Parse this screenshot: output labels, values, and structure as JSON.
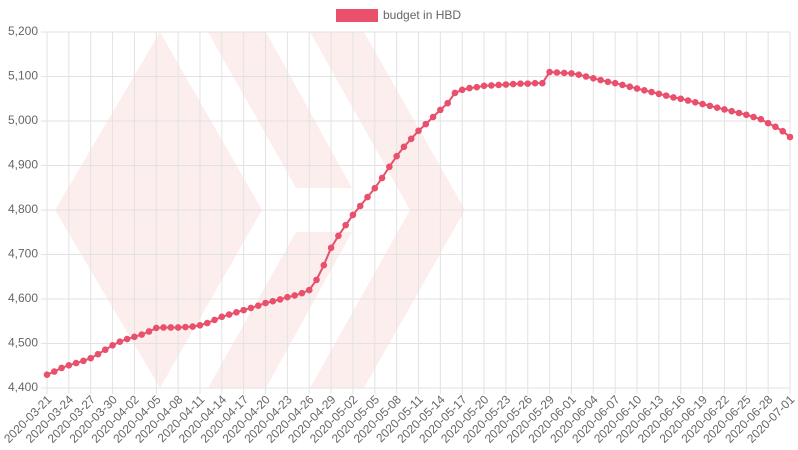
{
  "chart_data": {
    "type": "line",
    "series": [
      {
        "name": "budget in HBD",
        "color": "#e8506c",
        "values": [
          4430,
          4437,
          4445,
          4451,
          4456,
          4461,
          4467,
          4476,
          4486,
          4496,
          4504,
          4510,
          4515,
          4520,
          4527,
          4535,
          4536,
          4536,
          4536,
          4537,
          4538,
          4541,
          4546,
          4553,
          4560,
          4565,
          4570,
          4575,
          4580,
          4585,
          4591,
          4595,
          4599,
          4604,
          4608,
          4613,
          4620,
          4643,
          4676,
          4715,
          4742,
          4766,
          4789,
          4809,
          4829,
          4849,
          4872,
          4897,
          4921,
          4942,
          4960,
          4978,
          4993,
          5009,
          5025,
          5040,
          5063,
          5070,
          5074,
          5076,
          5079,
          5080,
          5081,
          5082,
          5083,
          5084,
          5084,
          5085,
          5085,
          5110,
          5109,
          5108,
          5107,
          5104,
          5100,
          5096,
          5092,
          5088,
          5085,
          5081,
          5077,
          5073,
          5069,
          5065,
          5061,
          5057,
          5053,
          5050,
          5046,
          5042,
          5038,
          5034,
          5030,
          5026,
          5022,
          5018,
          5014,
          5009,
          5004,
          4995,
          4987,
          4977,
          4964
        ]
      }
    ],
    "categories": [
      "2020-03-21",
      null,
      null,
      "2020-03-24",
      null,
      null,
      "2020-03-27",
      null,
      null,
      "2020-03-30",
      null,
      null,
      "2020-04-02",
      null,
      null,
      "2020-04-05",
      null,
      null,
      "2020-04-08",
      null,
      null,
      "2020-04-11",
      null,
      null,
      "2020-04-14",
      null,
      null,
      "2020-04-17",
      null,
      null,
      "2020-04-20",
      null,
      null,
      "2020-04-23",
      null,
      null,
      "2020-04-26",
      null,
      null,
      "2020-04-29",
      null,
      null,
      "2020-05-02",
      null,
      null,
      "2020-05-05",
      null,
      null,
      "2020-05-08",
      null,
      null,
      "2020-05-11",
      null,
      null,
      "2020-05-14",
      null,
      null,
      "2020-05-17",
      null,
      null,
      "2020-05-20",
      null,
      null,
      "2020-05-23",
      null,
      null,
      "2020-05-26",
      null,
      null,
      "2020-05-29",
      null,
      null,
      "2020-06-01",
      null,
      null,
      "2020-06-04",
      null,
      null,
      "2020-06-07",
      null,
      null,
      "2020-06-10",
      null,
      null,
      "2020-06-13",
      null,
      null,
      "2020-06-16",
      null,
      null,
      "2020-06-19",
      null,
      null,
      "2020-06-22",
      null,
      null,
      "2020-06-25",
      null,
      null,
      "2020-06-28",
      null,
      null,
      "2020-07-01"
    ],
    "ylim": [
      4400,
      5200
    ],
    "yticks": [
      {
        "value": 4400,
        "label": "4,400"
      },
      {
        "value": 4500,
        "label": "4,500"
      },
      {
        "value": 4600,
        "label": "4,600"
      },
      {
        "value": 4700,
        "label": "4,700"
      },
      {
        "value": 4800,
        "label": "4,800"
      },
      {
        "value": 4900,
        "label": "4,900"
      },
      {
        "value": 5000,
        "label": "5,000"
      },
      {
        "value": 5100,
        "label": "5,100"
      },
      {
        "value": 5200,
        "label": "5,200"
      }
    ],
    "grid": true,
    "legend": "top"
  }
}
